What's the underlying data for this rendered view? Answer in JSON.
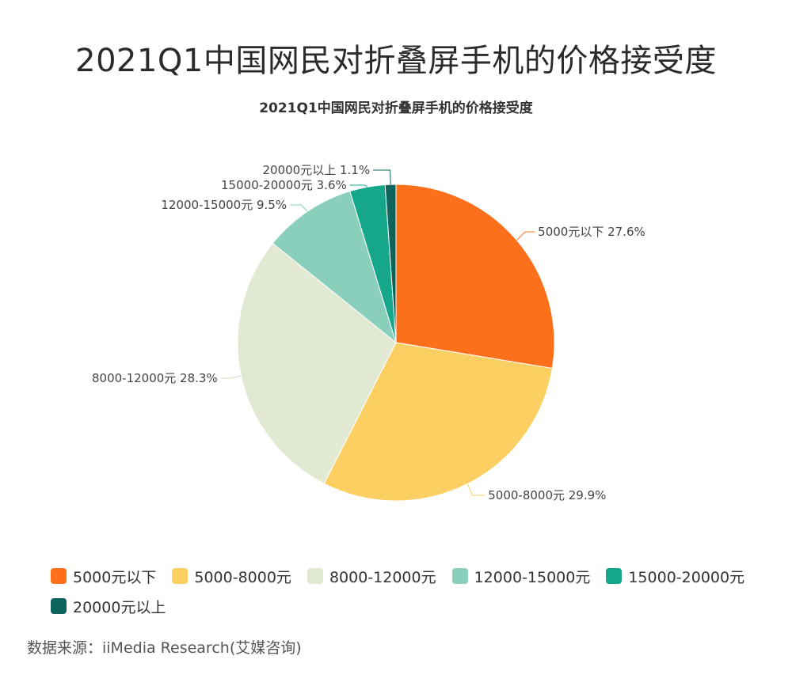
{
  "header": {
    "title": "2021Q1中国网民对折叠屏手机的价格接受度"
  },
  "chart_data": {
    "type": "pie",
    "title": "2021Q1中国网民对折叠屏手机的价格接受度",
    "slices": [
      {
        "label": "5000元以下",
        "value": 27.6,
        "value_label": "27.6%",
        "color": "#FC701C"
      },
      {
        "label": "5000-8000元",
        "value": 29.9,
        "value_label": "29.9%",
        "color": "#FCCF62"
      },
      {
        "label": "8000-12000元",
        "value": 28.3,
        "value_label": "28.3%",
        "color": "#E2E9D3"
      },
      {
        "label": "12000-15000元",
        "value": 9.5,
        "value_label": "9.5%",
        "color": "#8ACFBC"
      },
      {
        "label": "15000-20000元",
        "value": 3.6,
        "value_label": "3.6%",
        "color": "#16A68A"
      },
      {
        "label": "20000元以上",
        "value": 1.1,
        "value_label": "1.1%",
        "color": "#0E655E"
      }
    ],
    "legend_position": "bottom-left"
  },
  "footer": {
    "source": "数据来源：iiMedia Research(艾媒咨询)"
  }
}
